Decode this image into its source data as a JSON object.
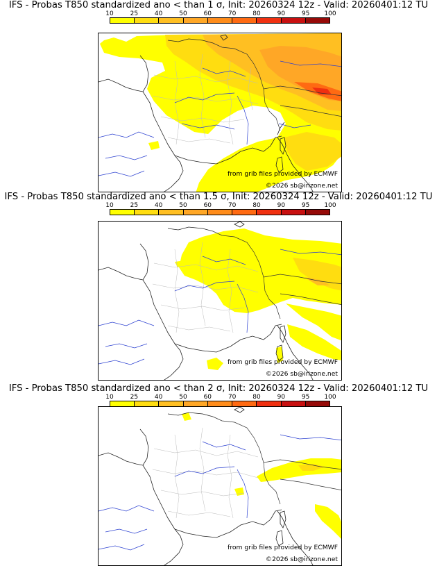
{
  "colorbar": {
    "labels": [
      "10",
      "25",
      "40",
      "50",
      "60",
      "70",
      "80",
      "90",
      "95",
      "100"
    ],
    "colors": [
      "#ffff00",
      "#ffdd10",
      "#ffbf22",
      "#ffa726",
      "#ff8c1a",
      "#ff6a12",
      "#f03010",
      "#c81010",
      "#960a08",
      "#5a0000"
    ]
  },
  "panels": [
    {
      "title": "IFS - Probas T850  standardized ano < than 1 σ, Init: 20260324 12z - Valid: 20260401:12 TU",
      "credit_grib": "from grib files provided by ECMWF",
      "credit_copy": "©2026 sb@irizone.net"
    },
    {
      "title": "IFS - Probas T850  standardized ano < than 1.5 σ, Init: 20260324 12z - Valid: 20260401:12 TU",
      "credit_grib": "from grib files provided by ECMWF",
      "credit_copy": "©2026 sb@irizone.net"
    },
    {
      "title": "IFS - Probas T850  standardized ano < than 2 σ, Init: 20260324 12z - Valid: 20260401:12 TU",
      "credit_grib": "from grib files provided by ECMWF",
      "credit_copy": "©2026 sb@irizone.net"
    }
  ]
}
